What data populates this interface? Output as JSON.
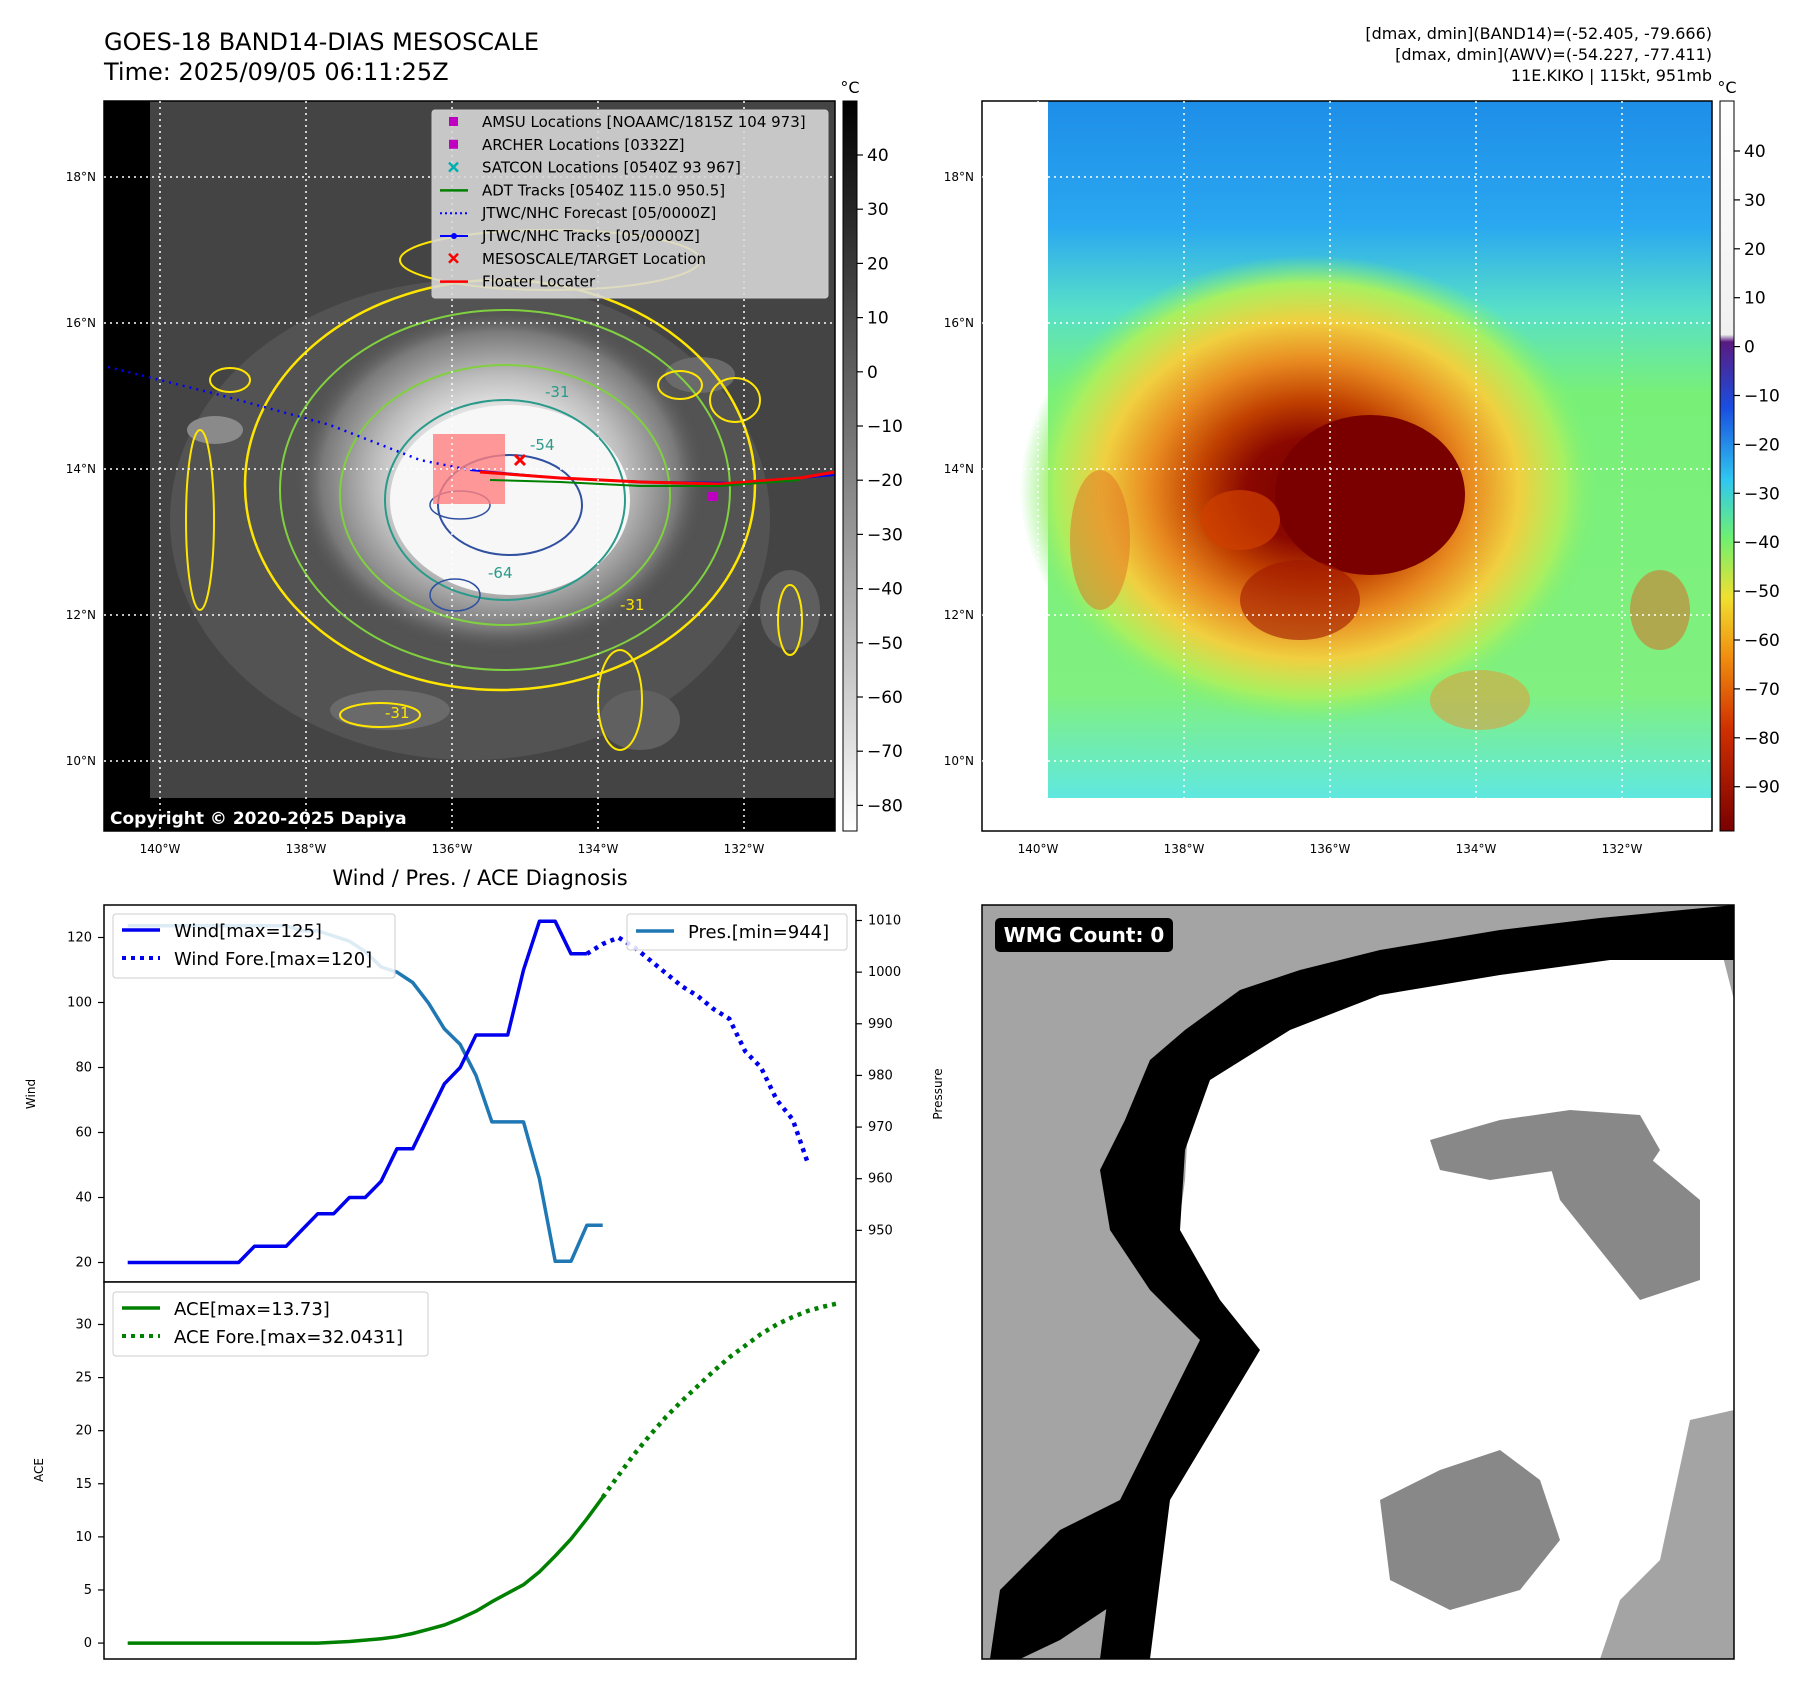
{
  "header": {
    "title_line1": "GOES-18 BAND14-DIAS MESOSCALE",
    "title_line2": "Time: 2025/09/05 06:11:25Z",
    "stats_line1": "[dmax, dmin](BAND14)=(-52.405, -79.666)",
    "stats_line2": "[dmax, dmin](AWV)=(-54.227, -77.411)",
    "stats_line3": "11E.KIKO | 115kt, 951mb"
  },
  "map_common": {
    "lon_ticks": [
      "140°W",
      "138°W",
      "136°W",
      "134°W",
      "132°W"
    ],
    "lat_ticks": [
      "18°N",
      "16°N",
      "14°N",
      "12°N",
      "10°N"
    ],
    "unit": "°C"
  },
  "ir_panel": {
    "copyright": "Copyright © 2020-2025 Dapiya",
    "colorbar_ticks": [
      "40",
      "30",
      "20",
      "10",
      "0",
      "−10",
      "−20",
      "−30",
      "−40",
      "−50",
      "−60",
      "−70",
      "−80"
    ],
    "contour_labels": [
      "-31",
      "-54",
      "-64",
      "-31",
      "-31"
    ],
    "legend": [
      {
        "label": "AMSU Locations [NOAAMC/1815Z 104 973]",
        "color": "#c000c0",
        "marker": "square"
      },
      {
        "label": "ARCHER Locations [0332Z]",
        "color": "#c000c0",
        "marker": "square"
      },
      {
        "label": "SATCON Locations [0540Z 93 967]",
        "color": "#00b0b0",
        "marker": "x"
      },
      {
        "label": "ADT Tracks [0540Z 115.0 950.5]",
        "color": "#008000",
        "marker": "line"
      },
      {
        "label": "JTWC/NHC Forecast [05/0000Z]",
        "color": "#0000ff",
        "marker": "dotted"
      },
      {
        "label": "JTWC/NHC Tracks [05/0000Z]",
        "color": "#0000ff",
        "marker": "line-dot"
      },
      {
        "label": "MESOSCALE/TARGET Location",
        "color": "#ff0000",
        "marker": "x"
      },
      {
        "label": "Floater Locater",
        "color": "#ff0000",
        "marker": "line"
      }
    ]
  },
  "awv_panel": {
    "colorbar_ticks": [
      "40",
      "30",
      "20",
      "10",
      "0",
      "−10",
      "−20",
      "−30",
      "−40",
      "−50",
      "−60",
      "−70",
      "−80",
      "−90"
    ]
  },
  "diagnosis_panel": {
    "title": "Wind / Pres. / ACE Diagnosis",
    "wind_ylabel": "Wind",
    "pres_ylabel": "Pressure",
    "ace_ylabel": "ACE",
    "wind_ticks": [
      "120",
      "100",
      "80",
      "60",
      "40",
      "20"
    ],
    "pres_ticks": [
      "1010",
      "1000",
      "990",
      "980",
      "970",
      "960",
      "950"
    ],
    "ace_ticks": [
      "30",
      "25",
      "20",
      "15",
      "10",
      "5",
      "0"
    ],
    "legend_wind": "Wind[max=125]",
    "legend_wind_fore": "Wind Fore.[max=120]",
    "legend_pres": "Pres.[min=944]",
    "legend_ace": "ACE[max=13.73]",
    "legend_ace_fore": "ACE Fore.[max=32.0431]"
  },
  "wmg_panel": {
    "badge": "WMG Count: 0"
  },
  "chart_data": [
    {
      "type": "line",
      "name": "wind",
      "ylim": [
        14,
        130
      ],
      "x_index_max": 36,
      "series": [
        {
          "name": "Wind[max=125]",
          "style": "solid",
          "color": "#0000ee",
          "x": [
            0,
            1,
            2,
            3,
            4,
            5,
            6,
            7,
            8,
            9,
            10,
            11,
            12,
            13,
            14,
            15,
            16,
            17,
            18,
            19,
            20,
            21,
            22,
            23,
            24,
            25,
            26,
            27,
            28,
            29
          ],
          "values": [
            20,
            20,
            20,
            20,
            20,
            20,
            20,
            20,
            25,
            25,
            25,
            30,
            35,
            35,
            40,
            40,
            45,
            55,
            55,
            65,
            75,
            80,
            90,
            90,
            90,
            110,
            125,
            125,
            115,
            115
          ]
        },
        {
          "name": "Wind Fore.[max=120]",
          "style": "dotted",
          "color": "#0000ee",
          "x": [
            29,
            30,
            31,
            32,
            33,
            34,
            35,
            36,
            37,
            38,
            39,
            40,
            41,
            42,
            43
          ],
          "values": [
            115,
            118,
            120,
            117,
            113,
            109,
            105,
            102,
            98,
            95,
            85,
            80,
            70,
            64,
            50
          ]
        }
      ]
    },
    {
      "type": "line",
      "name": "pressure",
      "ylim": [
        940,
        1013
      ],
      "series": [
        {
          "name": "Pres.[min=944]",
          "style": "solid",
          "color": "#1f77b4",
          "x": [
            0,
            1,
            2,
            3,
            4,
            5,
            6,
            7,
            8,
            9,
            10,
            11,
            12,
            13,
            14,
            15,
            16,
            17,
            18,
            19,
            20,
            21,
            22,
            23,
            24,
            25,
            26,
            27,
            28,
            29,
            30
          ],
          "values": [
            1009,
            1009,
            1009,
            1009,
            1009,
            1009,
            1009,
            1009,
            1009,
            1009,
            1009,
            1008,
            1008,
            1007,
            1006,
            1004,
            1001,
            1000,
            998,
            994,
            989,
            986,
            980,
            971,
            971,
            971,
            960,
            944,
            944,
            951,
            951
          ]
        }
      ]
    },
    {
      "type": "line",
      "name": "ace",
      "ylim": [
        -1.5,
        34
      ],
      "series": [
        {
          "name": "ACE[max=13.73]",
          "style": "solid",
          "color": "#008000",
          "x": [
            0,
            2,
            4,
            6,
            8,
            10,
            12,
            14,
            16,
            17,
            18,
            19,
            20,
            21,
            22,
            23,
            24,
            25,
            26,
            27,
            28,
            29,
            30
          ],
          "values": [
            0,
            0,
            0,
            0,
            0,
            0,
            0,
            0.15,
            0.4,
            0.6,
            0.9,
            1.3,
            1.7,
            2.3,
            3.0,
            3.9,
            4.7,
            5.5,
            6.7,
            8.2,
            9.8,
            11.7,
            13.73
          ]
        },
        {
          "name": "ACE Fore.[max=32.0431]",
          "style": "dotted",
          "color": "#008000",
          "x": [
            30,
            31,
            32,
            33,
            34,
            35,
            36,
            37,
            38,
            39,
            40,
            41,
            42,
            43,
            44,
            45
          ],
          "values": [
            13.73,
            15.8,
            17.8,
            19.6,
            21.3,
            22.8,
            24.2,
            25.6,
            26.9,
            28.0,
            29.1,
            30.0,
            30.7,
            31.3,
            31.7,
            32.04
          ]
        }
      ]
    }
  ]
}
